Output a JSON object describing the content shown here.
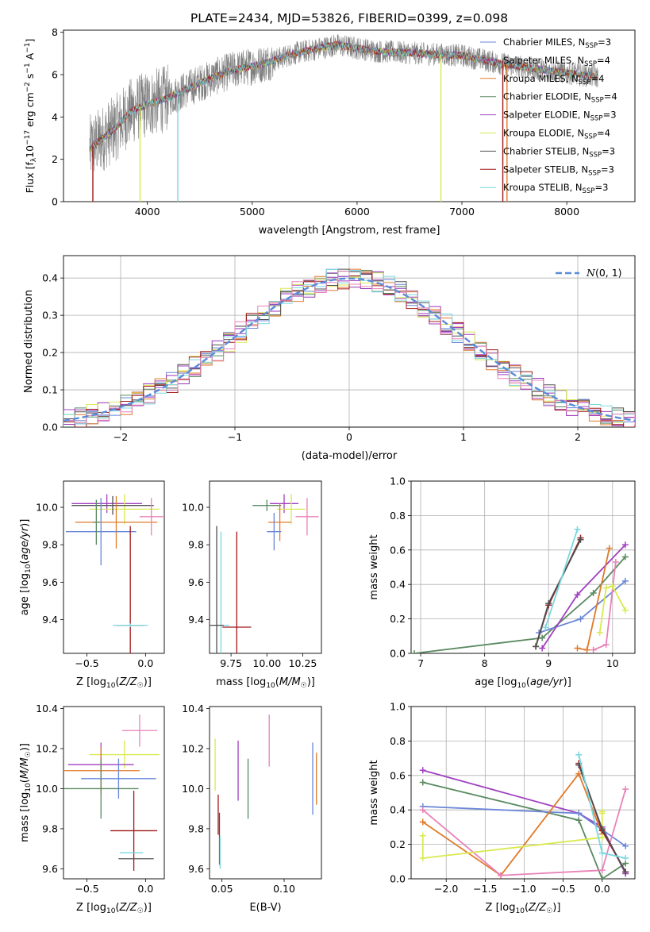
{
  "figure_title": "PLATE=2434, MJD=53826, FIBERID=0399, z=0.098",
  "colors": {
    "Chabrier MILES": "#6a86d8",
    "Salpeter MILES": "#9a36b5",
    "Kroupa MILES": "#e07a2a",
    "Chabrier ELODIE": "#5a8a60",
    "Salpeter ELODIE": "#a040c0",
    "Kroupa ELODIE": "#d8ea50",
    "Chabrier STELIB": "#505050",
    "Salpeter STELIB": "#a01818",
    "Kroupa STELIB": "#7ad8e0",
    "extra_pink": "#e882b8"
  },
  "chart_data": [
    {
      "id": "spectrum",
      "type": "line",
      "xlabel": "wavelength [Angstrom, rest frame]",
      "ylabel": "Flux [f_λ 10^-17 erg cm^-2 s^-1 A^-1]",
      "xlim": [
        3200,
        8650
      ],
      "ylim": [
        0,
        8.1
      ],
      "xticks": [
        4000,
        5000,
        6000,
        7000,
        8000
      ],
      "yticks": [
        0,
        2,
        4,
        6,
        8
      ],
      "grid": false,
      "legend_position": "upper-right",
      "legend": [
        {
          "main": "Chabrier MILES, N",
          "sub": "SSP",
          "tail": "=3",
          "color": "#6a86d8"
        },
        {
          "main": "Salpeter MILES, N",
          "sub": "SSP",
          "tail": "=4",
          "color": "#9a36b5"
        },
        {
          "main": "Kroupa MILES, N",
          "sub": "SSP",
          "tail": "=4",
          "color": "#e07a2a"
        },
        {
          "main": "Chabrier ELODIE, N",
          "sub": "SSP",
          "tail": "=4",
          "color": "#5a8a60"
        },
        {
          "main": "Salpeter ELODIE, N",
          "sub": "SSP",
          "tail": "=3",
          "color": "#a040c0"
        },
        {
          "main": "Kroupa ELODIE, N",
          "sub": "SSP",
          "tail": "=4",
          "color": "#d8ea50"
        },
        {
          "main": "Chabrier STELIB, N",
          "sub": "SSP",
          "tail": "=3",
          "color": "#505050"
        },
        {
          "main": "Salpeter STELIB, N",
          "sub": "SSP",
          "tail": "=3",
          "color": "#a01818"
        },
        {
          "main": "Kroupa STELIB, N",
          "sub": "SSP",
          "tail": "=3",
          "color": "#7ad8e0"
        }
      ],
      "continuum_anchors": [
        [
          3450,
          2.5
        ],
        [
          3700,
          3.5
        ],
        [
          3850,
          4.3
        ],
        [
          4000,
          4.6
        ],
        [
          4200,
          4.9
        ],
        [
          4500,
          5.6
        ],
        [
          4800,
          6.2
        ],
        [
          5100,
          6.5
        ],
        [
          5400,
          7.0
        ],
        [
          5800,
          7.4
        ],
        [
          6200,
          7.1
        ],
        [
          6600,
          7.0
        ],
        [
          7000,
          6.9
        ],
        [
          7400,
          6.5
        ],
        [
          7800,
          6.2
        ],
        [
          8300,
          5.9
        ]
      ],
      "spikes": [
        {
          "x": 3480,
          "color": "#a01818"
        },
        {
          "x": 3930,
          "color": "#d8ea50"
        },
        {
          "x": 4290,
          "color": "#7ad8e0"
        },
        {
          "x": 6800,
          "color": "#d8ea50"
        },
        {
          "x": 7390,
          "color": "#a01818"
        },
        {
          "x": 7430,
          "color": "#e07a2a"
        }
      ]
    },
    {
      "id": "residuals",
      "type": "histogram",
      "xlabel": "(data-model)/error",
      "ylabel": "Normed distribution",
      "xlim": [
        -2.5,
        2.5
      ],
      "ylim": [
        0,
        0.46
      ],
      "xticks": [
        -2,
        -1,
        0,
        1,
        2
      ],
      "yticks": [
        0.0,
        0.1,
        0.2,
        0.3,
        0.4
      ],
      "grid": true,
      "legend_position": "upper-right",
      "gaussian_label": "N(0, 1)",
      "gaussian_color": "#5b8bd8",
      "bin_width": 0.1
    },
    {
      "id": "age_vs_Z",
      "type": "errorbar",
      "xlabel": "Z [log10(Z/Z☉)]",
      "ylabel": "age [log10(age/yr)]",
      "xlim": [
        -0.7,
        0.16
      ],
      "ylim": [
        9.22,
        10.14
      ],
      "xticks": [
        -0.5,
        0.0
      ],
      "yticks": [
        9.4,
        9.6,
        9.8,
        10.0
      ],
      "points": [
        {
          "x": -0.33,
          "y": 10.02,
          "xerr": 0.3,
          "yerr": 0.05,
          "color": "#a040c0"
        },
        {
          "x": -0.18,
          "y": 9.99,
          "xerr": 0.3,
          "yerr": 0.08,
          "color": "#d8ea50"
        },
        {
          "x": -0.28,
          "y": 10.01,
          "xerr": 0.35,
          "yerr": 0.05,
          "color": "#505050"
        },
        {
          "x": -0.25,
          "y": 9.92,
          "xerr": 0.35,
          "yerr": 0.14,
          "color": "#e07a2a"
        },
        {
          "x": 0.05,
          "y": 9.95,
          "xerr": 0.1,
          "yerr": 0.1,
          "color": "#e882b8"
        },
        {
          "x": -0.38,
          "y": 9.87,
          "xerr": 0.3,
          "yerr": 0.18,
          "color": "#6a86d8"
        },
        {
          "x": -0.13,
          "y": 9.37,
          "xerr": 0.12,
          "yerr": 0.53,
          "color": "#a01818"
        },
        {
          "x": -0.13,
          "y": 9.37,
          "xerr": 0.15,
          "yerr": 0.01,
          "color": "#7ad8e0"
        },
        {
          "x": -0.42,
          "y": 9.92,
          "xerr": 0.03,
          "yerr": 0.12,
          "color": "#5a8a60"
        }
      ]
    },
    {
      "id": "age_vs_mass",
      "type": "errorbar",
      "xlabel": "mass [log10(M/M☉)]",
      "ylabel": "",
      "xlim": [
        9.6,
        10.38
      ],
      "ylim": [
        9.22,
        10.14
      ],
      "xticks": [
        9.75,
        10.0,
        10.25
      ],
      "xticklabels": [
        "9.75",
        "10.00",
        "10.25"
      ],
      "yticks": [
        9.4,
        9.6,
        9.8,
        10.0
      ],
      "points": [
        {
          "x": 10.12,
          "y": 10.02,
          "xerr": 0.1,
          "yerr": 0.05,
          "color": "#a040c0"
        },
        {
          "x": 10.17,
          "y": 9.99,
          "xerr": 0.1,
          "yerr": 0.08,
          "color": "#d8ea50"
        },
        {
          "x": 10.0,
          "y": 10.01,
          "xerr": 0.1,
          "yerr": 0.03,
          "color": "#5a8a60"
        },
        {
          "x": 10.09,
          "y": 9.92,
          "xerr": 0.08,
          "yerr": 0.1,
          "color": "#e07a2a"
        },
        {
          "x": 10.28,
          "y": 9.95,
          "xerr": 0.08,
          "yerr": 0.1,
          "color": "#e882b8"
        },
        {
          "x": 10.05,
          "y": 9.87,
          "xerr": 0.05,
          "yerr": 0.1,
          "color": "#6a86d8"
        },
        {
          "x": 9.79,
          "y": 9.36,
          "xerr": 0.1,
          "yerr": 0.51,
          "color": "#a01818"
        },
        {
          "x": 9.68,
          "y": 9.37,
          "xerr": 0.06,
          "yerr": 0.5,
          "color": "#7ad8e0"
        },
        {
          "x": 9.65,
          "y": 9.37,
          "xerr": 0.05,
          "yerr": 0.53,
          "color": "#505050"
        }
      ]
    },
    {
      "id": "massweight_vs_age",
      "type": "line",
      "xlabel": "age [log10(age/yr)]",
      "ylabel": "mass weight",
      "xlim": [
        6.85,
        10.35
      ],
      "ylim": [
        0,
        1.0
      ],
      "xticks": [
        7,
        8,
        9,
        10
      ],
      "yticks": [
        0.0,
        0.2,
        0.4,
        0.6,
        0.8,
        1.0
      ],
      "grid": true,
      "series": [
        {
          "color": "#5a8a60",
          "x": [
            6.9,
            8.9,
            9.7,
            10.2
          ],
          "y": [
            0.0,
            0.09,
            0.35,
            0.56
          ]
        },
        {
          "color": "#6a86d8",
          "x": [
            8.85,
            9.5,
            10.2
          ],
          "y": [
            0.12,
            0.2,
            0.42
          ]
        },
        {
          "color": "#a040c0",
          "x": [
            8.9,
            9.45,
            10.2
          ],
          "y": [
            0.03,
            0.34,
            0.63
          ]
        },
        {
          "color": "#e07a2a",
          "x": [
            9.45,
            9.6,
            9.95
          ],
          "y": [
            0.03,
            0.02,
            0.61
          ]
        },
        {
          "color": "#e882b8",
          "x": [
            9.7,
            9.9,
            10.05
          ],
          "y": [
            0.02,
            0.05,
            0.53
          ]
        },
        {
          "color": "#d8ea50",
          "x": [
            9.8,
            9.9,
            10.0,
            10.2
          ],
          "y": [
            0.12,
            0.38,
            0.39,
            0.25
          ]
        },
        {
          "color": "#a01818",
          "x": [
            8.8,
            9.0,
            9.5
          ],
          "y": [
            0.04,
            0.28,
            0.67
          ]
        },
        {
          "color": "#505050",
          "x": [
            8.8,
            9.0,
            9.5
          ],
          "y": [
            0.04,
            0.29,
            0.66
          ]
        },
        {
          "color": "#7ad8e0",
          "x": [
            8.95,
            9.45
          ],
          "y": [
            0.15,
            0.72
          ]
        }
      ]
    },
    {
      "id": "mass_vs_Z",
      "type": "errorbar",
      "xlabel": "Z [log10(Z/Z☉)]",
      "ylabel": "mass [log10(M/M☉)]",
      "xlim": [
        -0.7,
        0.16
      ],
      "ylim": [
        9.55,
        10.41
      ],
      "xticks": [
        -0.5,
        0.0
      ],
      "yticks": [
        9.6,
        9.8,
        10.0,
        10.2,
        10.4
      ],
      "points": [
        {
          "x": -0.05,
          "y": 10.29,
          "xerr": 0.15,
          "yerr": 0.08,
          "color": "#e882b8"
        },
        {
          "x": -0.18,
          "y": 10.17,
          "xerr": 0.3,
          "yerr": 0.07,
          "color": "#d8ea50"
        },
        {
          "x": -0.38,
          "y": 10.12,
          "xerr": 0.28,
          "yerr": 0.11,
          "color": "#a040c0"
        },
        {
          "x": -0.38,
          "y": 10.09,
          "xerr": 0.33,
          "yerr": 0.12,
          "color": "#e07a2a"
        },
        {
          "x": -0.23,
          "y": 10.05,
          "xerr": 0.32,
          "yerr": 0.1,
          "color": "#6a86d8"
        },
        {
          "x": -0.38,
          "y": 10.0,
          "xerr": 0.32,
          "yerr": 0.15,
          "color": "#5a8a60"
        },
        {
          "x": -0.1,
          "y": 9.79,
          "xerr": 0.2,
          "yerr": 0.2,
          "color": "#a01818"
        },
        {
          "x": -0.12,
          "y": 9.68,
          "xerr": 0.1,
          "yerr": 0.0,
          "color": "#7ad8e0"
        },
        {
          "x": -0.08,
          "y": 9.65,
          "xerr": 0.15,
          "yerr": 0.0,
          "color": "#505050"
        }
      ]
    },
    {
      "id": "mass_vs_ebv",
      "type": "errorbar",
      "xlabel": "E(B-V)",
      "ylabel": "",
      "xlim": [
        0.04,
        0.13
      ],
      "ylim": [
        9.55,
        10.41
      ],
      "xticks": [
        0.05,
        0.1
      ],
      "xticklabels": [
        "0.05",
        "0.10"
      ],
      "yticks": [
        9.6,
        9.8,
        10.0,
        10.2,
        10.4
      ],
      "points": [
        {
          "x": 0.0445,
          "y": 10.12,
          "xerr": 0,
          "yerr": 0.13,
          "color": "#d8ea50"
        },
        {
          "x": 0.047,
          "y": 9.87,
          "xerr": 0,
          "yerr": 0.1,
          "color": "#a01818"
        },
        {
          "x": 0.048,
          "y": 9.75,
          "xerr": 0,
          "yerr": 0.13,
          "color": "#505050"
        },
        {
          "x": 0.0485,
          "y": 9.68,
          "xerr": 0,
          "yerr": 0.08,
          "color": "#7ad8e0"
        },
        {
          "x": 0.063,
          "y": 10.09,
          "xerr": 0,
          "yerr": 0.15,
          "color": "#a040c0"
        },
        {
          "x": 0.071,
          "y": 10.0,
          "xerr": 0,
          "yerr": 0.15,
          "color": "#5a8a60"
        },
        {
          "x": 0.088,
          "y": 10.24,
          "xerr": 0,
          "yerr": 0.13,
          "color": "#e882b8"
        },
        {
          "x": 0.123,
          "y": 10.05,
          "xerr": 0,
          "yerr": 0.18,
          "color": "#6a86d8"
        },
        {
          "x": 0.126,
          "y": 10.05,
          "xerr": 0,
          "yerr": 0.13,
          "color": "#e07a2a"
        }
      ]
    },
    {
      "id": "massweight_vs_Z",
      "type": "line",
      "xlabel": "Z [log10(Z/Z☉)]",
      "ylabel": "mass weight",
      "xlim": [
        -2.45,
        0.42
      ],
      "ylim": [
        0,
        1.0
      ],
      "xticks": [
        -2.0,
        -1.5,
        -1.0,
        -0.5,
        0.0
      ],
      "yticks": [
        0.0,
        0.2,
        0.4,
        0.6,
        0.8,
        1.0
      ],
      "grid": true,
      "series": [
        {
          "color": "#a040c0",
          "x": [
            -2.3,
            -0.3,
            0.0,
            0.3
          ],
          "y": [
            0.63,
            0.38,
            0.3,
            0.03
          ]
        },
        {
          "color": "#5a8a60",
          "x": [
            -2.3,
            -0.3,
            0.0,
            0.3
          ],
          "y": [
            0.56,
            0.34,
            0.0,
            0.09
          ]
        },
        {
          "color": "#6a86d8",
          "x": [
            -2.3,
            -0.3,
            0.3
          ],
          "y": [
            0.42,
            0.38,
            0.19
          ]
        },
        {
          "color": "#e07a2a",
          "x": [
            -2.3,
            -1.3,
            -0.3,
            0.0
          ],
          "y": [
            0.33,
            0.02,
            0.61,
            0.26
          ]
        },
        {
          "color": "#e882b8",
          "x": [
            -2.3,
            -1.3,
            0.0,
            0.3
          ],
          "y": [
            0.4,
            0.02,
            0.05,
            0.52
          ]
        },
        {
          "color": "#d8ea50",
          "x": [
            -2.3,
            -2.3,
            0.0,
            0.0,
            0.0
          ],
          "y": [
            0.25,
            0.12,
            0.24,
            0.39,
            0.38
          ]
        },
        {
          "color": "#a01818",
          "x": [
            -0.3,
            0.0,
            0.3
          ],
          "y": [
            0.67,
            0.28,
            0.04
          ]
        },
        {
          "color": "#505050",
          "x": [
            -0.3,
            0.0,
            0.3
          ],
          "y": [
            0.66,
            0.29,
            0.04
          ]
        },
        {
          "color": "#7ad8e0",
          "x": [
            -0.3,
            0.0,
            0.3
          ],
          "y": [
            0.72,
            0.15,
            0.12
          ]
        }
      ]
    }
  ]
}
